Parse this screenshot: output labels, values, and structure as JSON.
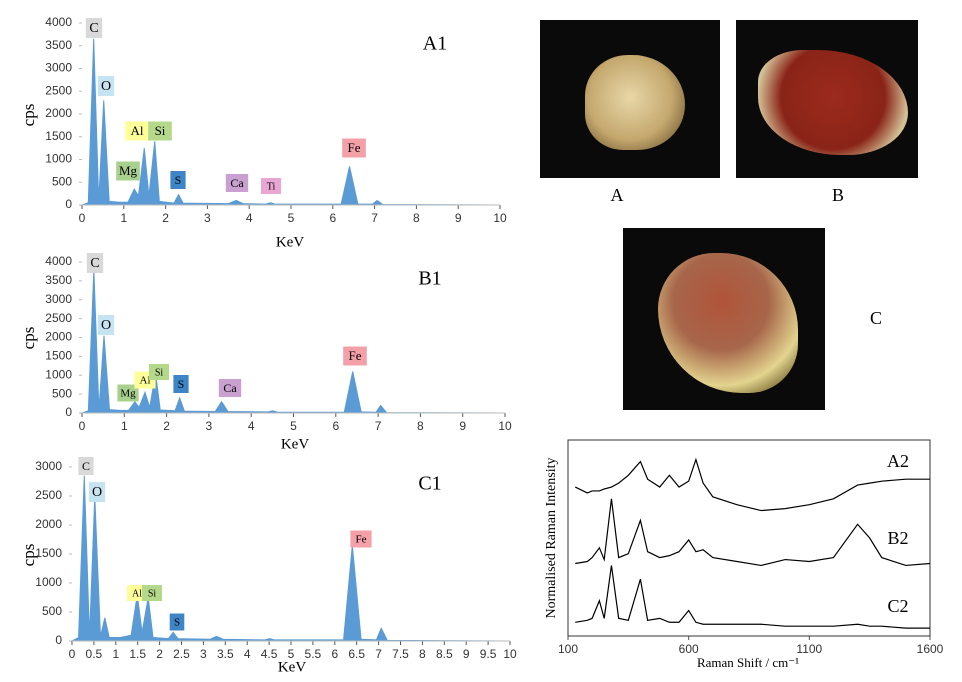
{
  "chart_data": [
    {
      "type": "area",
      "title": "A1",
      "xlabel": "KeV",
      "ylabel": "cps",
      "color": "#5b9bd5",
      "x": [
        0,
        0.15,
        0.28,
        0.4,
        0.52,
        0.65,
        0.9,
        1.1,
        1.25,
        1.35,
        1.49,
        1.6,
        1.74,
        1.85,
        2.2,
        2.31,
        2.42,
        3.5,
        3.69,
        3.85,
        4.4,
        4.51,
        4.62,
        6.2,
        6.4,
        6.6,
        6.95,
        7.06,
        7.2,
        10
      ],
      "values": [
        0,
        50,
        3650,
        80,
        2300,
        80,
        60,
        60,
        350,
        200,
        1250,
        200,
        1400,
        80,
        40,
        230,
        40,
        30,
        100,
        30,
        20,
        50,
        20,
        20,
        850,
        20,
        20,
        100,
        10,
        0
      ],
      "xlim": [
        0,
        10
      ],
      "xticks": [
        0,
        1,
        2,
        3,
        4,
        5,
        6,
        7,
        8,
        9,
        10
      ],
      "ylim": [
        0,
        4000
      ],
      "yticks": [
        0,
        500,
        1000,
        1500,
        2000,
        2500,
        3000,
        3500,
        4000
      ],
      "annotations": [
        {
          "text": "C",
          "color": "#d9d9d9"
        },
        {
          "text": "O",
          "color": "#c5e3f0"
        },
        {
          "text": "Al",
          "color": "#ffff99"
        },
        {
          "text": "Si",
          "color": "#b5d98a"
        },
        {
          "text": "Mg",
          "color": "#a9d18e"
        },
        {
          "text": "S",
          "color": "#3d85c6"
        },
        {
          "text": "Ca",
          "color": "#c9a0d0"
        },
        {
          "text": "Ti",
          "color": "#e9a6d4"
        },
        {
          "text": "Fe",
          "color": "#f4a0a8"
        }
      ]
    },
    {
      "type": "area",
      "title": "B1",
      "xlabel": "KeV",
      "ylabel": "cps",
      "color": "#5b9bd5",
      "x": [
        0,
        0.15,
        0.28,
        0.4,
        0.52,
        0.65,
        0.9,
        1.1,
        1.25,
        1.35,
        1.49,
        1.6,
        1.74,
        1.85,
        2.2,
        2.31,
        2.42,
        3.15,
        3.3,
        3.45,
        4.4,
        4.51,
        4.62,
        6.2,
        6.4,
        6.6,
        6.95,
        7.06,
        7.2,
        10
      ],
      "values": [
        0,
        60,
        3800,
        90,
        2050,
        90,
        70,
        70,
        300,
        150,
        550,
        150,
        1050,
        80,
        60,
        400,
        50,
        40,
        300,
        40,
        30,
        60,
        20,
        20,
        1100,
        30,
        20,
        200,
        10,
        0
      ],
      "xlim": [
        0,
        10
      ],
      "xticks": [
        0,
        1,
        2,
        3,
        4,
        5,
        6,
        7,
        8,
        9,
        10
      ],
      "ylim": [
        0,
        4000
      ],
      "yticks": [
        0,
        500,
        1000,
        1500,
        2000,
        2500,
        3000,
        3500,
        4000
      ],
      "annotations": [
        {
          "text": "C",
          "color": "#d9d9d9"
        },
        {
          "text": "O",
          "color": "#c5e3f0"
        },
        {
          "text": "Mg",
          "color": "#a9d18e"
        },
        {
          "text": "Al",
          "color": "#ffff99"
        },
        {
          "text": "Si",
          "color": "#b5d98a"
        },
        {
          "text": "S",
          "color": "#3d85c6"
        },
        {
          "text": "Ca",
          "color": "#c9a0d0"
        },
        {
          "text": "Fe",
          "color": "#f4a0a8"
        }
      ]
    },
    {
      "type": "area",
      "title": "C1",
      "xlabel": "KeV",
      "ylabel": "cps",
      "color": "#5b9bd5",
      "x": [
        0,
        0.15,
        0.28,
        0.4,
        0.52,
        0.65,
        0.75,
        0.85,
        1.1,
        1.35,
        1.49,
        1.6,
        1.74,
        1.85,
        2.2,
        2.31,
        2.42,
        3.15,
        3.3,
        3.45,
        4.4,
        4.51,
        4.62,
        6.2,
        6.4,
        6.6,
        6.95,
        7.06,
        7.2,
        10
      ],
      "values": [
        0,
        60,
        2850,
        80,
        2500,
        80,
        400,
        60,
        60,
        100,
        800,
        150,
        750,
        60,
        40,
        150,
        40,
        30,
        80,
        30,
        20,
        40,
        20,
        20,
        1650,
        30,
        20,
        220,
        10,
        0
      ],
      "xlim": [
        0,
        10
      ],
      "xticks": [
        0,
        0.5,
        1,
        1.5,
        2,
        2.5,
        3,
        3.5,
        4,
        4.5,
        5,
        5.5,
        6,
        6.5,
        7,
        7.5,
        8,
        8.5,
        9,
        9.5,
        10
      ],
      "ylim": [
        0,
        3000
      ],
      "yticks": [
        0,
        500,
        1000,
        1500,
        2000,
        2500,
        3000
      ],
      "annotations": [
        {
          "text": "C",
          "color": "#d9d9d9"
        },
        {
          "text": "O",
          "color": "#c5e3f0"
        },
        {
          "text": "Al",
          "color": "#ffff99"
        },
        {
          "text": "Si",
          "color": "#b5d98a"
        },
        {
          "text": "S",
          "color": "#3d85c6"
        },
        {
          "text": "Fe",
          "color": "#f4a0a8"
        }
      ]
    },
    {
      "type": "line",
      "xlabel": "Raman Shift / cm⁻¹",
      "ylabel": "Normalised Raman Intensity",
      "x": [
        130,
        180,
        200,
        230,
        250,
        280,
        310,
        350,
        400,
        430,
        480,
        520,
        560,
        600,
        630,
        660,
        700,
        800,
        900,
        1000,
        1100,
        1200,
        1300,
        1350,
        1400,
        1500,
        1600
      ],
      "xlim": [
        100,
        1600
      ],
      "xticks": [
        100,
        600,
        1100,
        1600
      ],
      "ylim": [
        0,
        10
      ],
      "series": [
        {
          "name": "A2",
          "color": "#000000",
          "values": [
            7.6,
            7.3,
            7.4,
            7.4,
            7.5,
            7.6,
            7.8,
            8.2,
            8.9,
            8.0,
            7.6,
            8.2,
            7.6,
            7.9,
            9.0,
            7.8,
            7.1,
            6.7,
            6.4,
            6.5,
            6.7,
            7.0,
            7.7,
            7.8,
            7.9,
            8.0,
            8.0
          ]
        },
        {
          "name": "B2",
          "color": "#000000",
          "values": [
            3.7,
            3.8,
            4.0,
            4.5,
            3.9,
            7.0,
            4.0,
            4.2,
            5.9,
            4.3,
            4.0,
            4.1,
            4.3,
            4.9,
            4.3,
            4.4,
            4.0,
            3.8,
            3.6,
            3.9,
            3.8,
            4.0,
            5.7,
            5.0,
            4.0,
            3.6,
            3.7
          ]
        },
        {
          "name": "C2",
          "color": "#000000",
          "values": [
            0.7,
            0.8,
            0.9,
            1.8,
            0.9,
            3.6,
            0.9,
            0.8,
            2.9,
            0.8,
            0.9,
            0.7,
            0.7,
            1.3,
            0.7,
            0.6,
            0.6,
            0.6,
            0.6,
            0.5,
            0.5,
            0.5,
            0.6,
            0.5,
            0.5,
            0.4,
            0.4
          ]
        }
      ]
    }
  ],
  "images": [
    {
      "label": "A"
    },
    {
      "label": "B"
    },
    {
      "label": "C"
    }
  ]
}
